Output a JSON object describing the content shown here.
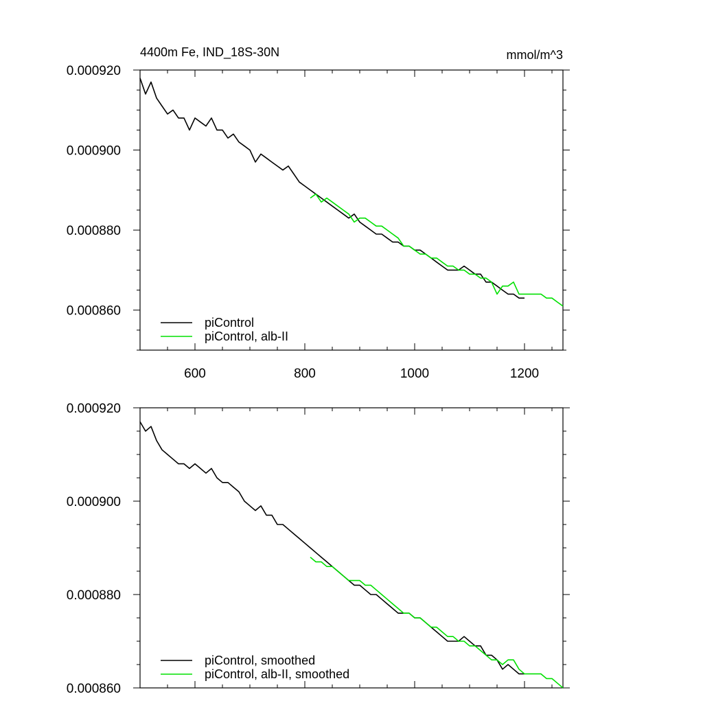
{
  "chart_data": [
    {
      "type": "line",
      "title": "4400m Fe, IND_18S-30N",
      "units": "mmol/m^3",
      "xlim": [
        500,
        1270
      ],
      "ylim": [
        0.00085,
        0.00092
      ],
      "x_ticks": [
        600,
        800,
        1000,
        1200
      ],
      "x_tick_labels": [
        "600",
        "800",
        "1000",
        "1200"
      ],
      "y_ticks": [
        0.00086,
        0.00088,
        0.0009,
        0.00092
      ],
      "y_tick_labels": [
        "0.000860",
        "0.000880",
        "0.000900",
        "0.000920"
      ],
      "legend_position": "bottom-left",
      "series": [
        {
          "name": "piControl",
          "color": "#000000",
          "x": [
            500,
            510,
            520,
            530,
            540,
            550,
            560,
            570,
            580,
            590,
            600,
            610,
            620,
            630,
            640,
            650,
            660,
            670,
            680,
            690,
            700,
            710,
            720,
            730,
            740,
            750,
            760,
            770,
            780,
            790,
            800,
            810,
            820,
            830,
            840,
            850,
            860,
            870,
            880,
            890,
            900,
            910,
            920,
            930,
            940,
            950,
            960,
            970,
            980,
            990,
            1000,
            1010,
            1020,
            1030,
            1040,
            1050,
            1060,
            1070,
            1080,
            1090,
            1100,
            1110,
            1120,
            1130,
            1140,
            1150,
            1160,
            1170,
            1180,
            1190,
            1200
          ],
          "values": [
            0.000918,
            0.000914,
            0.000917,
            0.000913,
            0.000911,
            0.000909,
            0.00091,
            0.000908,
            0.000908,
            0.000905,
            0.000908,
            0.000907,
            0.000906,
            0.000908,
            0.000905,
            0.000905,
            0.000903,
            0.000904,
            0.000902,
            0.000901,
            0.0009,
            0.000897,
            0.000899,
            0.000898,
            0.000897,
            0.000896,
            0.000895,
            0.000896,
            0.000894,
            0.000892,
            0.000891,
            0.00089,
            0.000889,
            0.000888,
            0.000887,
            0.000886,
            0.000885,
            0.000884,
            0.000883,
            0.000884,
            0.000882,
            0.000881,
            0.00088,
            0.000879,
            0.000879,
            0.000878,
            0.000877,
            0.000877,
            0.000876,
            0.000876,
            0.000875,
            0.000875,
            0.000874,
            0.000873,
            0.000872,
            0.000871,
            0.00087,
            0.00087,
            0.00087,
            0.000871,
            0.00087,
            0.000869,
            0.000869,
            0.000867,
            0.000867,
            0.000866,
            0.000865,
            0.000864,
            0.000864,
            0.000863,
            0.000863
          ]
        },
        {
          "name": "piControl, alb-II",
          "color": "#00e000",
          "x": [
            810,
            820,
            830,
            840,
            850,
            860,
            870,
            880,
            890,
            900,
            910,
            920,
            930,
            940,
            950,
            960,
            970,
            980,
            990,
            1000,
            1010,
            1020,
            1030,
            1040,
            1050,
            1060,
            1070,
            1080,
            1090,
            1100,
            1110,
            1120,
            1130,
            1140,
            1150,
            1160,
            1170,
            1180,
            1190,
            1200,
            1210,
            1220,
            1230,
            1240,
            1250,
            1260,
            1270
          ],
          "values": [
            0.000888,
            0.000889,
            0.000887,
            0.000888,
            0.000887,
            0.000886,
            0.000885,
            0.000884,
            0.000882,
            0.000883,
            0.000883,
            0.000882,
            0.000881,
            0.000881,
            0.00088,
            0.000879,
            0.000878,
            0.000876,
            0.000876,
            0.000875,
            0.000874,
            0.000874,
            0.000873,
            0.000873,
            0.000872,
            0.000871,
            0.000871,
            0.00087,
            0.00087,
            0.000869,
            0.000869,
            0.000868,
            0.000868,
            0.000867,
            0.000864,
            0.000866,
            0.000866,
            0.000867,
            0.000864,
            0.000864,
            0.000864,
            0.000864,
            0.000864,
            0.000863,
            0.000863,
            0.000862,
            0.000861
          ]
        }
      ]
    },
    {
      "type": "line",
      "xlim": [
        500,
        1270
      ],
      "ylim": [
        0.00086,
        0.00092
      ],
      "x_ticks": [
        600,
        800,
        1000,
        1200
      ],
      "y_ticks": [
        0.00086,
        0.00088,
        0.0009,
        0.00092
      ],
      "y_tick_labels": [
        "0.000860",
        "0.000880",
        "0.000900",
        "0.000920"
      ],
      "legend_position": "bottom-left",
      "series": [
        {
          "name": "piControl, smoothed",
          "color": "#000000",
          "x": [
            500,
            510,
            520,
            530,
            540,
            550,
            560,
            570,
            580,
            590,
            600,
            610,
            620,
            630,
            640,
            650,
            660,
            670,
            680,
            690,
            700,
            710,
            720,
            730,
            740,
            750,
            760,
            770,
            780,
            790,
            800,
            810,
            820,
            830,
            840,
            850,
            860,
            870,
            880,
            890,
            900,
            910,
            920,
            930,
            940,
            950,
            960,
            970,
            980,
            990,
            1000,
            1010,
            1020,
            1030,
            1040,
            1050,
            1060,
            1070,
            1080,
            1090,
            1100,
            1110,
            1120,
            1130,
            1140,
            1150,
            1160,
            1170,
            1180,
            1190,
            1200
          ],
          "values": [
            0.000917,
            0.000915,
            0.000916,
            0.000913,
            0.000911,
            0.00091,
            0.000909,
            0.000908,
            0.000908,
            0.000907,
            0.000908,
            0.000907,
            0.000906,
            0.000907,
            0.000905,
            0.000904,
            0.000904,
            0.000903,
            0.000902,
            0.0009,
            0.000899,
            0.000898,
            0.000899,
            0.000897,
            0.000897,
            0.000895,
            0.000895,
            0.000894,
            0.000893,
            0.000892,
            0.000891,
            0.00089,
            0.000889,
            0.000888,
            0.000887,
            0.000886,
            0.000885,
            0.000884,
            0.000883,
            0.000882,
            0.000882,
            0.000881,
            0.00088,
            0.00088,
            0.000879,
            0.000878,
            0.000877,
            0.000876,
            0.000876,
            0.000876,
            0.000875,
            0.000875,
            0.000874,
            0.000873,
            0.000872,
            0.000871,
            0.00087,
            0.00087,
            0.00087,
            0.000871,
            0.00087,
            0.000869,
            0.000869,
            0.000867,
            0.000867,
            0.000866,
            0.000864,
            0.000865,
            0.000864,
            0.000863,
            0.000863
          ]
        },
        {
          "name": "piControl, alb-II, smoothed",
          "color": "#00e000",
          "x": [
            810,
            820,
            830,
            840,
            850,
            860,
            870,
            880,
            890,
            900,
            910,
            920,
            930,
            940,
            950,
            960,
            970,
            980,
            990,
            1000,
            1010,
            1020,
            1030,
            1040,
            1050,
            1060,
            1070,
            1080,
            1090,
            1100,
            1110,
            1120,
            1130,
            1140,
            1150,
            1160,
            1170,
            1180,
            1190,
            1200,
            1210,
            1220,
            1230,
            1240,
            1250,
            1260,
            1270
          ],
          "values": [
            0.000888,
            0.000887,
            0.000887,
            0.000886,
            0.000886,
            0.000885,
            0.000884,
            0.000883,
            0.000883,
            0.000883,
            0.000882,
            0.000882,
            0.000881,
            0.00088,
            0.000879,
            0.000878,
            0.000877,
            0.000876,
            0.000876,
            0.000875,
            0.000875,
            0.000874,
            0.000873,
            0.000873,
            0.000872,
            0.000871,
            0.000871,
            0.00087,
            0.00087,
            0.000869,
            0.000869,
            0.000868,
            0.000867,
            0.000866,
            0.000866,
            0.000865,
            0.000866,
            0.000866,
            0.000864,
            0.000863,
            0.000863,
            0.000863,
            0.000863,
            0.000862,
            0.000862,
            0.000861,
            0.00086
          ]
        }
      ]
    }
  ]
}
